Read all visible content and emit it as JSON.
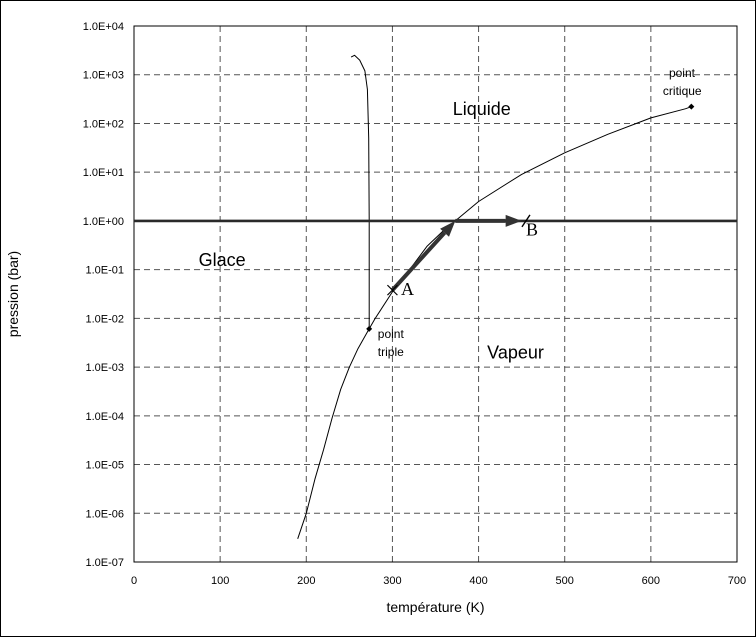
{
  "chart_data": {
    "type": "line",
    "title": "",
    "xlabel": "température (K)",
    "ylabel": "pression (bar)",
    "xlim": [
      0,
      700
    ],
    "ylim_log10": [
      -7,
      4
    ],
    "y_scale": "log",
    "grid": "dashed",
    "x_ticks": [
      0,
      100,
      200,
      300,
      400,
      500,
      600,
      700
    ],
    "y_ticks": [
      {
        "exp": 4,
        "label": "1.0E+04"
      },
      {
        "exp": 3,
        "label": "1.0E+03"
      },
      {
        "exp": 2,
        "label": "1.0E+02"
      },
      {
        "exp": 1,
        "label": "1.0E+01"
      },
      {
        "exp": 0,
        "label": "1.0E+00"
      },
      {
        "exp": -1,
        "label": "1.0E-01"
      },
      {
        "exp": -2,
        "label": "1.0E-02"
      },
      {
        "exp": -3,
        "label": "1.0E-03"
      },
      {
        "exp": -4,
        "label": "1.0E-04"
      },
      {
        "exp": -5,
        "label": "1.0E-05"
      },
      {
        "exp": -6,
        "label": "1.0E-06"
      },
      {
        "exp": -7,
        "label": "1.0E-07"
      }
    ],
    "series": [
      {
        "key": "sublimation",
        "points": [
          [
            190,
            3e-07
          ],
          [
            200,
            1e-06
          ],
          [
            210,
            5e-06
          ],
          [
            220,
            2e-05
          ],
          [
            230,
            9e-05
          ],
          [
            240,
            0.00035
          ],
          [
            250,
            0.001
          ],
          [
            260,
            0.0024
          ],
          [
            273,
            0.0061
          ]
        ]
      },
      {
        "key": "vaporisation",
        "points": [
          [
            273,
            0.0061
          ],
          [
            280,
            0.01
          ],
          [
            300,
            0.035
          ],
          [
            320,
            0.1
          ],
          [
            340,
            0.3
          ],
          [
            360,
            0.65
          ],
          [
            373,
            1.0
          ],
          [
            400,
            2.5
          ],
          [
            450,
            9.0
          ],
          [
            500,
            25
          ],
          [
            550,
            60
          ],
          [
            600,
            130
          ],
          [
            640,
            200
          ],
          [
            647,
            221
          ]
        ]
      },
      {
        "key": "fusion",
        "points": [
          [
            273,
            0.0061
          ],
          [
            273,
            1.0
          ],
          [
            272.5,
            50
          ],
          [
            271,
            500
          ],
          [
            268,
            1200
          ],
          [
            262,
            2000
          ],
          [
            256,
            2500
          ],
          [
            252,
            2300
          ]
        ]
      },
      {
        "key": "isobar",
        "points": [
          [
            0,
            1.0
          ],
          [
            700,
            1.0
          ]
        ]
      }
    ],
    "arrows": [
      {
        "from": [
          300,
          0.038
        ],
        "to": [
          373,
          1.0
        ]
      },
      {
        "from": [
          373,
          1.0
        ],
        "to": [
          450,
          1.0
        ]
      }
    ],
    "markers": [
      {
        "name": "A",
        "x": 300,
        "y": 0.038,
        "shape": "cross"
      },
      {
        "name": "B",
        "x": 455,
        "y": 1.0,
        "shape": "slash"
      },
      {
        "name": "point-triple",
        "x": 273,
        "y": 0.0061,
        "shape": "diamond"
      },
      {
        "name": "point-critique",
        "x": 647,
        "y": 221,
        "shape": "diamond"
      }
    ],
    "annotations": [
      {
        "key": "liquide",
        "text": "Liquide",
        "x": 370,
        "y": 150,
        "style": "region"
      },
      {
        "key": "glace",
        "text": "Glace",
        "x": 75,
        "y": 0.12,
        "style": "region"
      },
      {
        "key": "vapeur",
        "text": "Vapeur",
        "x": 410,
        "y": 0.0015,
        "style": "region"
      },
      {
        "key": "point_a",
        "text": "A",
        "x": 310,
        "y": 0.03,
        "style": "serif"
      },
      {
        "key": "point_b",
        "text": "B",
        "x": 455,
        "y": 0.5,
        "style": "serif"
      },
      {
        "key": "point_triple_1",
        "text": "point",
        "x": 283,
        "y": 0.004,
        "style": "small"
      },
      {
        "key": "point_triple_2",
        "text": "triple",
        "x": 283,
        "y": 0.0017,
        "style": "small"
      },
      {
        "key": "point_critique_1",
        "text": "point",
        "x": 621,
        "y": 900,
        "style": "small"
      },
      {
        "key": "point_critique_2",
        "text": "critique",
        "x": 614,
        "y": 380,
        "style": "small"
      }
    ]
  }
}
